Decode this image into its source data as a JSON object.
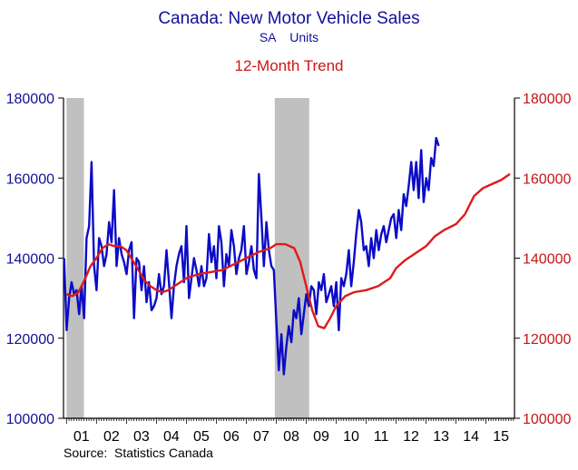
{
  "chart_data": {
    "type": "line",
    "title": "Canada: New Motor Vehicle Sales",
    "subtitle": "SA    Units",
    "trend_label": "12-Month Trend",
    "source": "Source:  Statistics Canada",
    "ylim": [
      100000,
      180000
    ],
    "yticks": [
      "100000",
      "120000",
      "140000",
      "160000",
      "180000"
    ],
    "ytick_values": [
      100000,
      120000,
      140000,
      160000,
      180000
    ],
    "xlim": [
      2000.9,
      2015.95
    ],
    "xtick_labels": [
      "01",
      "02",
      "03",
      "04",
      "05",
      "06",
      "07",
      "08",
      "09",
      "10",
      "11",
      "12",
      "13",
      "14",
      "15"
    ],
    "xtick_years": [
      2001,
      2002,
      2003,
      2004,
      2005,
      2006,
      2007,
      2008,
      2009,
      2010,
      2011,
      2012,
      2013,
      2014,
      2015
    ],
    "recessions": [
      [
        2001.0,
        2001.58
      ],
      [
        2007.95,
        2009.1
      ]
    ],
    "colors": {
      "monthly": "#0b0bc8",
      "trend": "#de1a1a",
      "left_axis": "#10109a",
      "right_axis": "#c81414",
      "recession": "#c0c0c0"
    },
    "series": [
      {
        "role": "monthly",
        "x_start": 2000.92,
        "x_step": 0.0833333,
        "values": [
          140000,
          122000,
          130000,
          134000,
          131000,
          132000,
          126000,
          133000,
          125000,
          145000,
          148000,
          164000,
          138000,
          132000,
          145000,
          143000,
          138000,
          141000,
          149000,
          144000,
          157000,
          138000,
          145000,
          141000,
          139000,
          136000,
          142000,
          144000,
          125000,
          140000,
          139000,
          132000,
          138000,
          129000,
          134000,
          127000,
          128000,
          130000,
          136000,
          131000,
          133000,
          142000,
          134000,
          125000,
          133000,
          138000,
          141000,
          143000,
          134000,
          148000,
          130000,
          135000,
          140000,
          137000,
          133000,
          138000,
          133000,
          135000,
          146000,
          139000,
          143000,
          135000,
          148000,
          144000,
          133000,
          141000,
          138000,
          147000,
          143000,
          136000,
          140000,
          142000,
          148000,
          136000,
          139000,
          143000,
          137000,
          135000,
          161000,
          150000,
          138000,
          149000,
          142000,
          138000,
          137000,
          124000,
          112000,
          121000,
          111000,
          118000,
          123000,
          119000,
          127000,
          125000,
          130000,
          121000,
          126000,
          131000,
          128000,
          133000,
          132000,
          126000,
          134000,
          132000,
          136000,
          129000,
          131000,
          133000,
          128000,
          134000,
          122000,
          135000,
          133000,
          136000,
          142000,
          133000,
          139000,
          146000,
          152000,
          149000,
          142000,
          143000,
          138000,
          145000,
          140000,
          147000,
          142000,
          146000,
          148000,
          144000,
          147000,
          150000,
          151000,
          145000,
          152000,
          147000,
          156000,
          153000,
          158000,
          164000,
          157000,
          164000,
          155000,
          167000,
          154000,
          160000,
          157000,
          165000,
          163000,
          170000,
          168000
        ]
      },
      {
        "role": "trend",
        "points": [
          [
            2001.0,
            131000
          ],
          [
            2001.2,
            130500
          ],
          [
            2001.4,
            131500
          ],
          [
            2001.6,
            134500
          ],
          [
            2001.8,
            138000
          ],
          [
            2002.0,
            140000
          ],
          [
            2002.2,
            142500
          ],
          [
            2002.4,
            143500
          ],
          [
            2002.6,
            143000
          ],
          [
            2002.8,
            143000
          ],
          [
            2003.0,
            142000
          ],
          [
            2003.2,
            139500
          ],
          [
            2003.4,
            137000
          ],
          [
            2003.6,
            134500
          ],
          [
            2003.8,
            133000
          ],
          [
            2004.0,
            132000
          ],
          [
            2004.2,
            131500
          ],
          [
            2004.4,
            132000
          ],
          [
            2004.6,
            133000
          ],
          [
            2004.8,
            134000
          ],
          [
            2005.0,
            135000
          ],
          [
            2005.4,
            136000
          ],
          [
            2005.8,
            136500
          ],
          [
            2006.2,
            137000
          ],
          [
            2006.6,
            138500
          ],
          [
            2007.0,
            140000
          ],
          [
            2007.4,
            141500
          ],
          [
            2007.8,
            142500
          ],
          [
            2008.0,
            143500
          ],
          [
            2008.3,
            143500
          ],
          [
            2008.6,
            142500
          ],
          [
            2008.8,
            139000
          ],
          [
            2009.0,
            133000
          ],
          [
            2009.2,
            127000
          ],
          [
            2009.4,
            123000
          ],
          [
            2009.6,
            122500
          ],
          [
            2009.8,
            125000
          ],
          [
            2010.0,
            128000
          ],
          [
            2010.3,
            130500
          ],
          [
            2010.6,
            131500
          ],
          [
            2011.0,
            132000
          ],
          [
            2011.4,
            133000
          ],
          [
            2011.8,
            135000
          ],
          [
            2012.0,
            137500
          ],
          [
            2012.3,
            139500
          ],
          [
            2012.6,
            141000
          ],
          [
            2013.0,
            143000
          ],
          [
            2013.3,
            145500
          ],
          [
            2013.6,
            147000
          ],
          [
            2014.0,
            148500
          ],
          [
            2014.3,
            151000
          ],
          [
            2014.6,
            155500
          ],
          [
            2014.9,
            157500
          ],
          [
            2015.2,
            158500
          ],
          [
            2015.5,
            159500
          ],
          [
            2015.8,
            161000
          ]
        ]
      }
    ]
  }
}
